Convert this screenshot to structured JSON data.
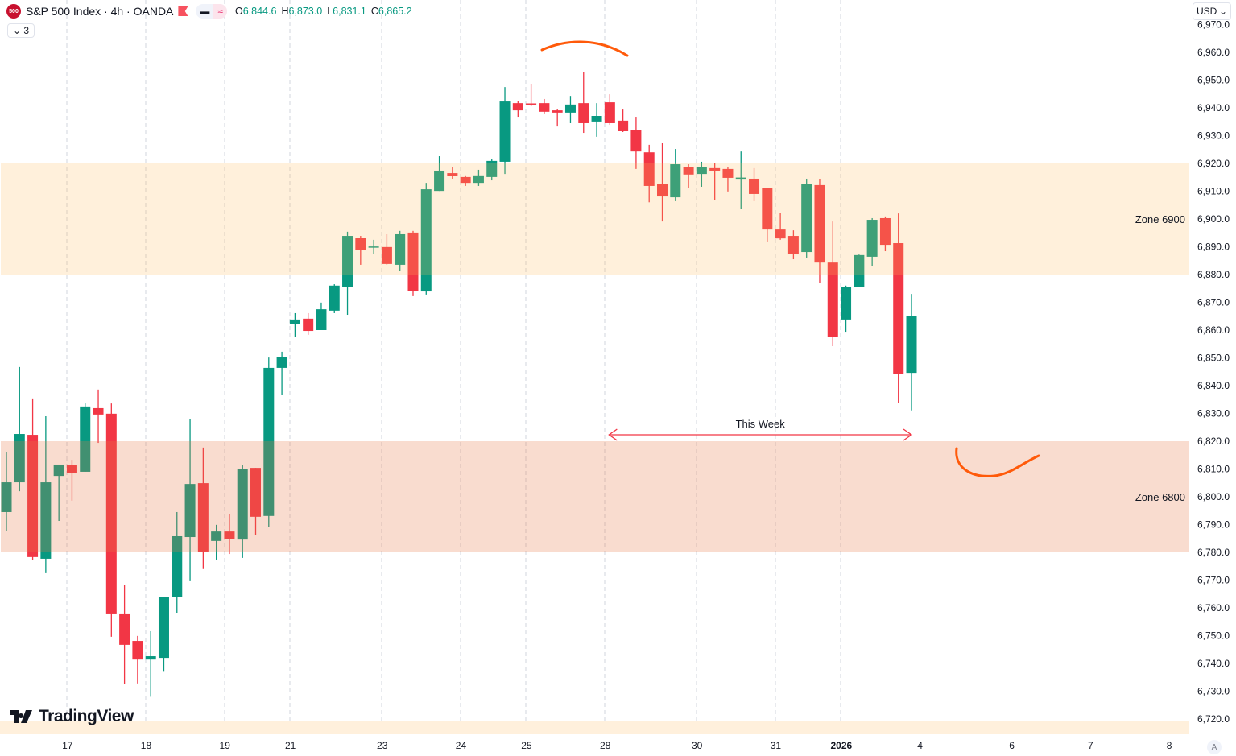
{
  "header": {
    "symbol_badge": "500",
    "title": "S&P 500 Index · 4h · OANDA",
    "indicators_collapsed_count": "3",
    "ohlc": {
      "o_label": "O",
      "o": "6,844.6",
      "h_label": "H",
      "h": "6,873.0",
      "l_label": "L",
      "l": "6,831.1",
      "c_label": "C",
      "c": "6,865.2"
    },
    "currency": "USD",
    "logo_text": "TradingView",
    "auto_scale_label": "A"
  },
  "colors": {
    "up": "#089981",
    "down": "#f23645",
    "zone_upper": "#fff0dc",
    "zone_lower": "#f8dccc",
    "drawing": "#ff5a0a",
    "arrow": "#f23645"
  },
  "chart_data": {
    "type": "candlestick",
    "title": "S&P 500 Index · 4h · OANDA",
    "ylim": [
      6715,
      6972
    ],
    "y_ticks": [
      "6,970.0",
      "6,960.0",
      "6,950.0",
      "6,940.0",
      "6,930.0",
      "6,920.0",
      "6,910.0",
      "6,900.0",
      "6,890.0",
      "6,880.0",
      "6,870.0",
      "6,860.0",
      "6,850.0",
      "6,840.0",
      "6,830.0",
      "6,820.0",
      "6,810.0",
      "6,800.0",
      "6,790.0",
      "6,780.0",
      "6,770.0",
      "6,760.0",
      "6,750.0",
      "6,740.0",
      "6,730.0",
      "6,720.0"
    ],
    "x_ticks": [
      {
        "label": "17",
        "bar": 5
      },
      {
        "label": "18",
        "bar": 11
      },
      {
        "label": "19",
        "bar": 17
      },
      {
        "label": "21",
        "bar": 22
      },
      {
        "label": "23",
        "bar": 29
      },
      {
        "label": "24",
        "bar": 35
      },
      {
        "label": "25",
        "bar": 40
      },
      {
        "label": "28",
        "bar": 46
      },
      {
        "label": "30",
        "bar": 53
      },
      {
        "label": "31",
        "bar": 59
      },
      {
        "label": "2026",
        "bar": 64,
        "bold": true
      },
      {
        "label": "4",
        "bar": 70
      },
      {
        "label": "6",
        "bar": 77
      },
      {
        "label": "7",
        "bar": 83
      },
      {
        "label": "8",
        "bar": 89
      }
    ],
    "grid": "vertical-dashed",
    "ohlc_columns": [
      "open",
      "high",
      "low",
      "close"
    ],
    "candles": [
      [
        6794.5,
        6816.2,
        6787.8,
        6805.2
      ],
      [
        6805.2,
        6846.7,
        6802.0,
        6822.6
      ],
      [
        6822.3,
        6835.4,
        6777.4,
        6778.3
      ],
      [
        6777.7,
        6829.0,
        6772.5,
        6805.2
      ],
      [
        6807.5,
        6811.6,
        6791.3,
        6811.6
      ],
      [
        6811.3,
        6813.3,
        6798.6,
        6808.7
      ],
      [
        6809.0,
        6833.6,
        6809.0,
        6832.5
      ],
      [
        6831.9,
        6838.6,
        6819.4,
        6829.6
      ],
      [
        6829.9,
        6833.6,
        6749.6,
        6757.7
      ],
      [
        6757.7,
        6768.4,
        6732.5,
        6746.7
      ],
      [
        6748.1,
        6749.9,
        6732.8,
        6741.4
      ],
      [
        6741.4,
        6751.6,
        6728.0,
        6742.6
      ],
      [
        6742.0,
        6764.0,
        6737.0,
        6764.0
      ],
      [
        6764.0,
        6794.5,
        6758.0,
        6785.8
      ],
      [
        6785.5,
        6828.1,
        6769.6,
        6804.6
      ],
      [
        6804.9,
        6817.7,
        6774.0,
        6780.3
      ],
      [
        6784.1,
        6789.9,
        6777.4,
        6787.5
      ],
      [
        6787.5,
        6793.9,
        6779.4,
        6784.9
      ],
      [
        6784.6,
        6811.3,
        6778.0,
        6810.1
      ],
      [
        6810.4,
        6810.4,
        6786.1,
        6792.8
      ],
      [
        6793.1,
        6850.1,
        6789.0,
        6846.4
      ],
      [
        6846.4,
        6852.2,
        6836.8,
        6850.4
      ],
      [
        6862.3,
        6866.1,
        6857.4,
        6863.8
      ],
      [
        6864.1,
        6866.1,
        6858.3,
        6859.7
      ],
      [
        6860.0,
        6869.9,
        6860.0,
        6867.5
      ],
      [
        6867.0,
        6876.5,
        6866.1,
        6876.0
      ],
      [
        6875.4,
        6895.4,
        6865.5,
        6893.9
      ],
      [
        6893.3,
        6893.9,
        6883.5,
        6888.7
      ],
      [
        6890.0,
        6892.5,
        6887.5,
        6890.1
      ],
      [
        6889.9,
        6894.5,
        6883.5,
        6883.8
      ],
      [
        6883.5,
        6895.7,
        6881.2,
        6894.5
      ],
      [
        6895.1,
        6895.7,
        6872.2,
        6874.2
      ],
      [
        6873.9,
        6913.0,
        6872.8,
        6910.7
      ],
      [
        6910.1,
        6922.6,
        6910.1,
        6917.4
      ],
      [
        6916.5,
        6918.8,
        6914.5,
        6915.4
      ],
      [
        6915.1,
        6915.7,
        6911.9,
        6913.0
      ],
      [
        6913.0,
        6917.7,
        6911.9,
        6915.7
      ],
      [
        6915.1,
        6921.7,
        6913.9,
        6920.9
      ],
      [
        6920.6,
        6947.5,
        6916.2,
        6942.3
      ],
      [
        6941.7,
        6942.6,
        6936.8,
        6939.1
      ],
      [
        6941.6,
        6948.7,
        6940.6,
        6941.3
      ],
      [
        6941.7,
        6943.2,
        6938.0,
        6938.6
      ],
      [
        6939.1,
        6939.7,
        6933.3,
        6938.3
      ],
      [
        6938.3,
        6944.3,
        6934.5,
        6941.2
      ],
      [
        6941.7,
        6953.0,
        6931.0,
        6934.5
      ],
      [
        6935.1,
        6941.7,
        6929.6,
        6937.1
      ],
      [
        6942.0,
        6944.9,
        6933.9,
        6934.5
      ],
      [
        6935.4,
        6939.4,
        6931.3,
        6931.6
      ],
      [
        6931.9,
        6936.8,
        6918.0,
        6924.3
      ],
      [
        6924.0,
        6926.7,
        6906.0,
        6911.9
      ],
      [
        6912.5,
        6927.5,
        6899.1,
        6908.1
      ],
      [
        6907.8,
        6925.2,
        6906.4,
        6919.7
      ],
      [
        6918.6,
        6919.7,
        6911.3,
        6916.0
      ],
      [
        6916.2,
        6920.6,
        6911.6,
        6918.6
      ],
      [
        6918.3,
        6920.0,
        6906.7,
        6917.4
      ],
      [
        6918.0,
        6918.8,
        6909.9,
        6914.8
      ],
      [
        6914.8,
        6924.3,
        6903.5,
        6914.9
      ],
      [
        6914.5,
        6918.3,
        6906.4,
        6909.0
      ],
      [
        6911.3,
        6911.3,
        6891.9,
        6896.2
      ],
      [
        6896.2,
        6902.3,
        6892.5,
        6893.0
      ],
      [
        6893.9,
        6895.9,
        6885.5,
        6887.5
      ],
      [
        6888.1,
        6914.5,
        6886.1,
        6912.5
      ],
      [
        6912.2,
        6914.5,
        6877.1,
        6884.3
      ],
      [
        6884.3,
        6899.1,
        6854.2,
        6857.4
      ],
      [
        6863.8,
        6876.0,
        6859.4,
        6875.4
      ],
      [
        6875.4,
        6887.2,
        6875.4,
        6887.0
      ],
      [
        6886.4,
        6900.3,
        6882.9,
        6899.7
      ],
      [
        6900.3,
        6900.9,
        6888.4,
        6890.7
      ],
      [
        6891.3,
        6902.0,
        6833.9,
        6844.1
      ],
      [
        6844.6,
        6873.0,
        6831.1,
        6865.2
      ]
    ],
    "zones": [
      {
        "label": "Zone 6900",
        "from": 6880,
        "to": 6920
      },
      {
        "label": "Zone 6800",
        "from": 6780,
        "to": 6820
      }
    ],
    "annotations": {
      "range_label": "This Week",
      "range_from_bar": 46,
      "range_to_bar": 69,
      "range_price": 6822
    }
  }
}
